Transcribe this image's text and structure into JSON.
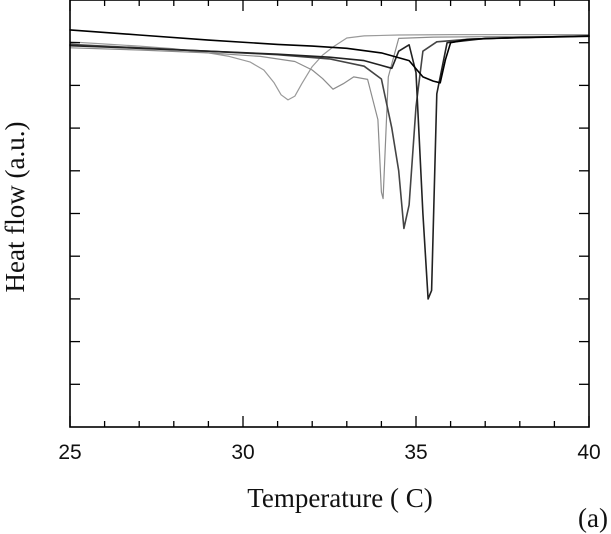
{
  "chart_data": {
    "type": "line",
    "title": "",
    "xlabel": "Temperature ( C)",
    "ylabel": "Heat flow (a.u.)",
    "panel_label": "(a)",
    "xlim": [
      25,
      40
    ],
    "ylim": [
      0,
      100
    ],
    "xticks": [
      25,
      30,
      35,
      40
    ],
    "xtick_labels": [
      "25",
      "30",
      "35",
      "40"
    ],
    "yticks": [
      10,
      20,
      30,
      40,
      50,
      60,
      70,
      80,
      90
    ],
    "ytick_labels": [],
    "grid": false,
    "legend": "none",
    "series": [
      {
        "color": "#9a9a9a",
        "x": [
          25,
          26,
          27,
          28,
          29,
          29.6,
          30.2,
          30.6,
          30.9,
          31.1,
          31.3,
          31.5,
          31.7,
          32.0,
          32.3,
          32.6,
          33.0,
          33.5,
          34.5,
          36,
          38,
          40
        ],
        "y": [
          90.2,
          89.7,
          89.2,
          88.6,
          87.6,
          86.8,
          85.5,
          83.6,
          80.6,
          77.8,
          76.6,
          77.5,
          80.4,
          84.4,
          87.1,
          89.0,
          91.1,
          91.6,
          91.8,
          91.9,
          91.9,
          91.9
        ]
      },
      {
        "color": "#8c8c8c",
        "x": [
          25,
          27,
          29,
          30.5,
          31.5,
          32.0,
          32.3,
          32.6,
          32.9,
          33.2,
          33.6,
          33.9,
          34.0,
          34.05,
          34.2,
          34.5,
          35.5,
          37,
          40
        ],
        "y": [
          88.8,
          88.3,
          87.6,
          86.8,
          85.6,
          83.6,
          81.6,
          79.1,
          80.4,
          82.0,
          81.4,
          72.0,
          55.0,
          53.5,
          82.0,
          91.0,
          91.3,
          91.4,
          91.5
        ]
      },
      {
        "color": "#444444",
        "x": [
          25,
          27,
          29,
          31,
          32.5,
          33.5,
          34.0,
          34.3,
          34.5,
          34.65,
          34.8,
          35.0,
          35.2,
          35.6,
          36.5,
          38,
          40
        ],
        "y": [
          89.6,
          88.8,
          88.0,
          87.2,
          86.2,
          84.5,
          81.5,
          70.0,
          60.0,
          46.5,
          52.0,
          75.0,
          88.0,
          90.2,
          90.8,
          91.2,
          91.6
        ]
      },
      {
        "color": "#222222",
        "x": [
          25,
          27,
          29,
          31,
          32.5,
          33.5,
          34.3,
          34.5,
          34.8,
          35.0,
          35.2,
          35.35,
          35.45,
          35.6,
          35.9,
          37,
          40
        ],
        "y": [
          89.3,
          88.7,
          88.0,
          87.3,
          86.6,
          85.8,
          84.0,
          88.0,
          89.5,
          83.0,
          50.0,
          30.0,
          32.0,
          78.0,
          90.0,
          91.0,
          91.5
        ]
      },
      {
        "color": "#000000",
        "x": [
          25,
          27,
          29,
          31,
          32,
          33.0,
          34.0,
          34.8,
          35.2,
          35.5,
          35.7,
          35.85,
          36.0,
          36.5,
          37.5,
          40
        ],
        "y": [
          93.0,
          91.8,
          90.6,
          89.6,
          89.2,
          88.7,
          87.6,
          85.8,
          82.0,
          81.0,
          80.6,
          86.0,
          90.0,
          90.8,
          91.1,
          91.6
        ]
      }
    ]
  }
}
